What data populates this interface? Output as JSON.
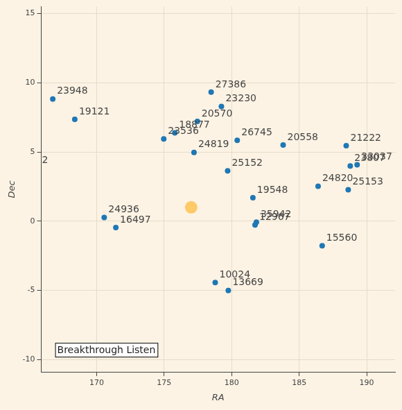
{
  "chart_data": {
    "type": "scatter",
    "x_label": "RA",
    "y_label": "Dec",
    "xlim": [
      165.9,
      192.1
    ],
    "ylim": [
      -10.9,
      15.5
    ],
    "xticks": [
      170,
      175,
      180,
      185,
      190
    ],
    "yticks": [
      -10,
      -5,
      0,
      5,
      10,
      15
    ],
    "grid": true,
    "series": [
      {
        "color": "#1f77b4",
        "marker": "circle",
        "x": [
          166.75,
          168.38,
          178.48,
          179.24,
          177.46,
          175.79,
          174.97,
          177.21,
          180.41,
          183.81,
          188.48,
          188.78,
          189.29,
          179.7,
          186.4,
          188.63,
          181.57,
          170.56,
          171.42,
          181.83,
          181.73,
          186.7,
          178.78,
          179.75
        ],
        "values": [
          8.83,
          7.36,
          9.32,
          8.29,
          7.21,
          6.38,
          5.94,
          4.96,
          5.84,
          5.5,
          5.45,
          3.99,
          4.08,
          3.64,
          2.52,
          2.27,
          1.69,
          0.27,
          -0.46,
          -0.07,
          -0.27,
          -1.78,
          -4.43,
          -5.01
        ],
        "labels": [
          "23948",
          "19121",
          "27386",
          "23230",
          "20570",
          "18877",
          "23536",
          "24819",
          "26745",
          "20558",
          "21222",
          "23807",
          "33037",
          "25152",
          "24820",
          "25153",
          "19548",
          "24936",
          "16497",
          "35942",
          "12967",
          "15560",
          "10024",
          "13669"
        ]
      },
      {
        "color": "#ffa500",
        "marker": "large_circle",
        "x": [
          177.0
        ],
        "values": [
          1.0
        ]
      }
    ],
    "annotations": [
      {
        "text": "2",
        "x": 165.95,
        "y": 4.4
      },
      {
        "text": "Breakthrough Listen"
      }
    ]
  }
}
